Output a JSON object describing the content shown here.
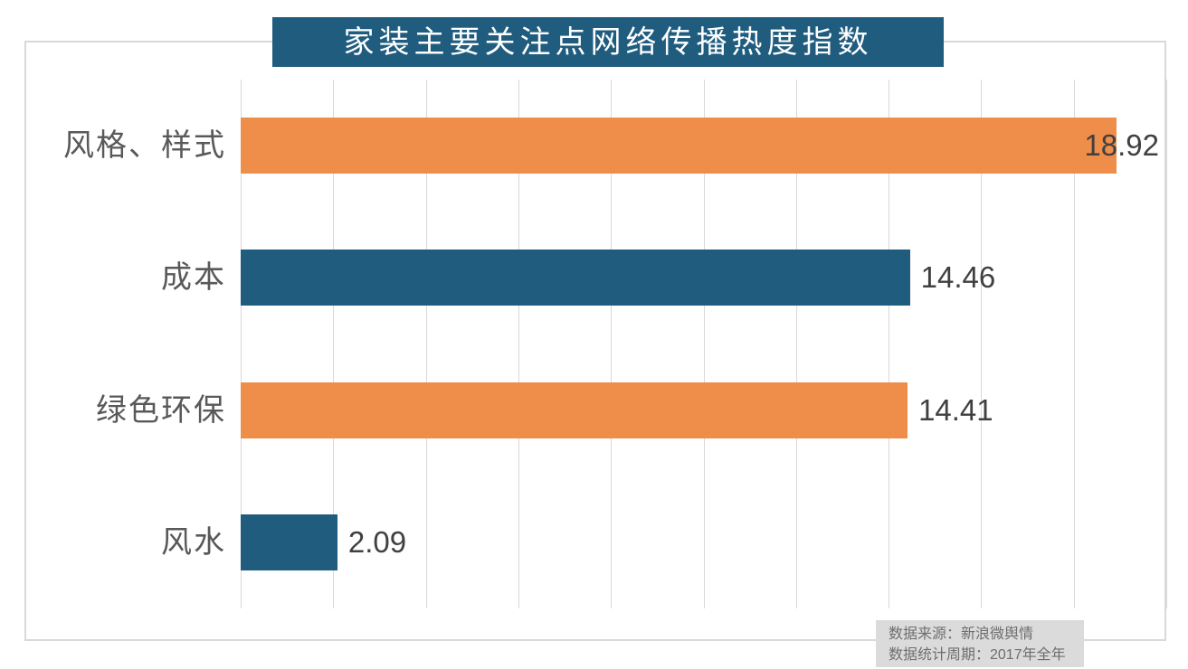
{
  "title": "家装主要关注点网络传播热度指数",
  "chart_data": {
    "type": "bar",
    "orientation": "horizontal",
    "title": "家装主要关注点网络传播热度指数",
    "categories": [
      "风格、样式",
      "成本",
      "绿色环保",
      "风水"
    ],
    "values": [
      18.92,
      14.46,
      14.41,
      2.09
    ],
    "value_labels": [
      "18.92",
      "14.46",
      "14.41",
      "2.09"
    ],
    "bar_colors": [
      "#EE8E4A",
      "#1F5C7E",
      "#EE8E4A",
      "#1F5C7E"
    ],
    "xlim": [
      0,
      20
    ],
    "gridline_step": 2,
    "grid": true,
    "legend": false,
    "value_label_position": "outside-end, moved inside-end when overflowing plot"
  },
  "source": {
    "line1": "数据来源：新浪微舆情",
    "line2": "数据统计周期：2017年全年"
  },
  "colors": {
    "title_bg": "#1F5C7E",
    "title_text": "#FFFFFF",
    "bar_orange": "#EE8E4A",
    "bar_teal": "#1F5C7E",
    "gridline": "#D9D9D9",
    "frame_border": "#D9D9D9",
    "category_text": "#595959",
    "value_text": "#404040",
    "source_bg": "#DBDBDB",
    "source_text": "#6E6E6E"
  }
}
